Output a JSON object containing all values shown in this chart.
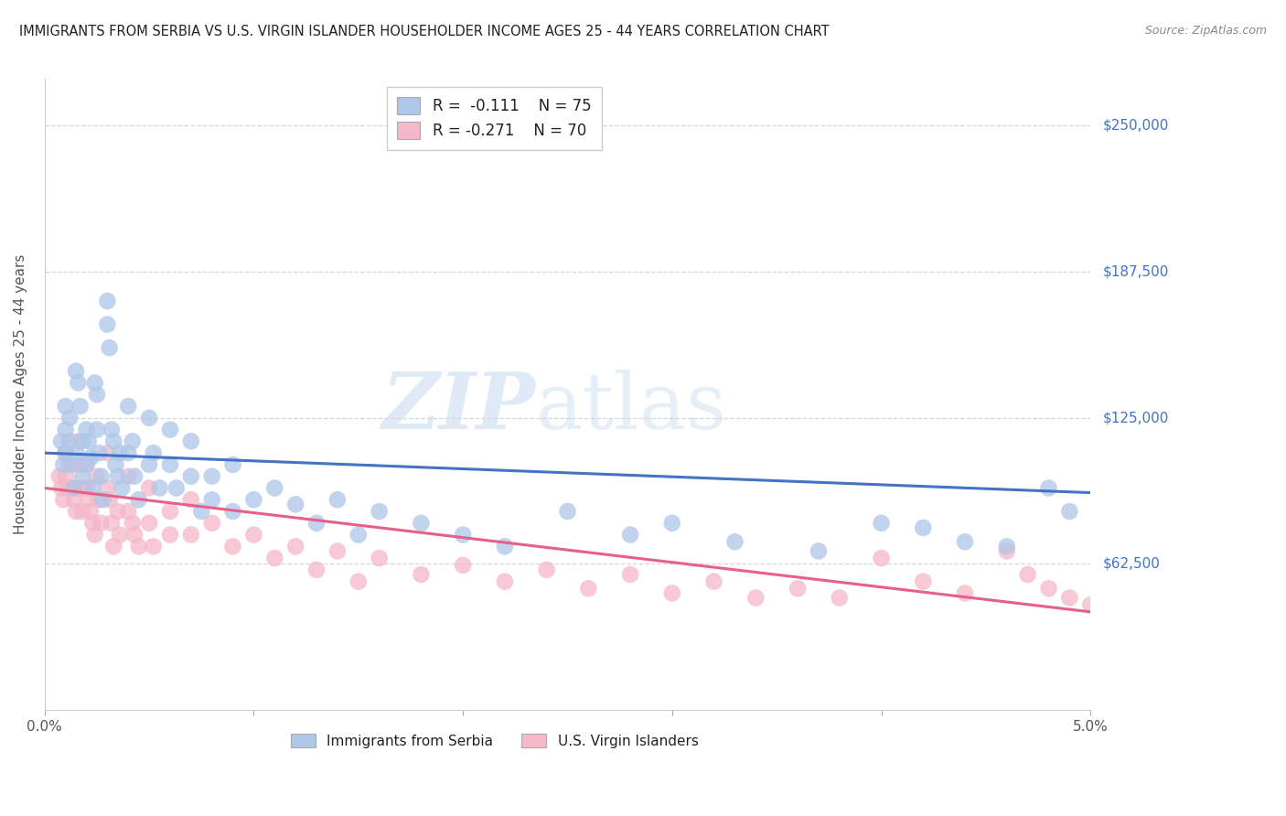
{
  "title": "IMMIGRANTS FROM SERBIA VS U.S. VIRGIN ISLANDER HOUSEHOLDER INCOME AGES 25 - 44 YEARS CORRELATION CHART",
  "source": "Source: ZipAtlas.com",
  "ylabel": "Householder Income Ages 25 - 44 years",
  "yticks": [
    62500,
    125000,
    187500,
    250000
  ],
  "ytick_labels": [
    "$62,500",
    "$125,000",
    "$187,500",
    "$250,000"
  ],
  "xmin": 0.0,
  "xmax": 0.05,
  "ymin": 0,
  "ymax": 270000,
  "serbia_color": "#aec6e8",
  "virgin_color": "#f4b8c8",
  "serbia_line_color": "#4472c4",
  "virgin_line_color": "#e8608a",
  "serbia_R": -0.111,
  "serbia_N": 75,
  "virgin_R": -0.271,
  "virgin_N": 70,
  "legend_label_1": "Immigrants from Serbia",
  "legend_label_2": "U.S. Virgin Islanders",
  "watermark_zip": "ZIP",
  "watermark_atlas": "atlas",
  "serbia_x": [
    0.0008,
    0.0009,
    0.001,
    0.001,
    0.001,
    0.0012,
    0.0012,
    0.0013,
    0.0014,
    0.0015,
    0.0015,
    0.0016,
    0.0017,
    0.0018,
    0.0018,
    0.002,
    0.002,
    0.0021,
    0.0022,
    0.0023,
    0.0024,
    0.0025,
    0.0025,
    0.0026,
    0.0027,
    0.0028,
    0.003,
    0.003,
    0.0031,
    0.0032,
    0.0033,
    0.0034,
    0.0035,
    0.0036,
    0.0037,
    0.004,
    0.004,
    0.0042,
    0.0043,
    0.0045,
    0.005,
    0.005,
    0.0052,
    0.0055,
    0.006,
    0.006,
    0.0063,
    0.007,
    0.007,
    0.0075,
    0.008,
    0.008,
    0.009,
    0.009,
    0.01,
    0.011,
    0.012,
    0.013,
    0.014,
    0.015,
    0.016,
    0.018,
    0.02,
    0.022,
    0.025,
    0.028,
    0.03,
    0.033,
    0.037,
    0.04,
    0.042,
    0.044,
    0.046,
    0.048,
    0.049
  ],
  "serbia_y": [
    115000,
    105000,
    130000,
    120000,
    110000,
    125000,
    115000,
    105000,
    95000,
    110000,
    145000,
    140000,
    130000,
    115000,
    100000,
    120000,
    105000,
    115000,
    108000,
    95000,
    140000,
    135000,
    120000,
    110000,
    100000,
    90000,
    175000,
    165000,
    155000,
    120000,
    115000,
    105000,
    100000,
    110000,
    95000,
    130000,
    110000,
    115000,
    100000,
    90000,
    125000,
    105000,
    110000,
    95000,
    120000,
    105000,
    95000,
    115000,
    100000,
    85000,
    100000,
    90000,
    105000,
    85000,
    90000,
    95000,
    88000,
    80000,
    90000,
    75000,
    85000,
    80000,
    75000,
    70000,
    85000,
    75000,
    80000,
    72000,
    68000,
    80000,
    78000,
    72000,
    70000,
    95000,
    85000
  ],
  "virgin_x": [
    0.0007,
    0.0008,
    0.0009,
    0.001,
    0.001,
    0.0011,
    0.0012,
    0.0013,
    0.0014,
    0.0015,
    0.0016,
    0.0017,
    0.0018,
    0.0018,
    0.002,
    0.002,
    0.0021,
    0.0022,
    0.0023,
    0.0024,
    0.0025,
    0.0026,
    0.0027,
    0.003,
    0.003,
    0.0031,
    0.0032,
    0.0033,
    0.0035,
    0.0036,
    0.004,
    0.004,
    0.0042,
    0.0043,
    0.0045,
    0.005,
    0.005,
    0.0052,
    0.006,
    0.006,
    0.007,
    0.007,
    0.008,
    0.009,
    0.01,
    0.011,
    0.012,
    0.013,
    0.014,
    0.015,
    0.016,
    0.018,
    0.02,
    0.022,
    0.024,
    0.026,
    0.028,
    0.03,
    0.032,
    0.034,
    0.036,
    0.038,
    0.04,
    0.042,
    0.044,
    0.046,
    0.047,
    0.048,
    0.049,
    0.05
  ],
  "virgin_y": [
    100000,
    95000,
    90000,
    110000,
    100000,
    95000,
    105000,
    95000,
    90000,
    85000,
    115000,
    105000,
    95000,
    85000,
    105000,
    95000,
    90000,
    85000,
    80000,
    75000,
    100000,
    90000,
    80000,
    110000,
    95000,
    90000,
    80000,
    70000,
    85000,
    75000,
    100000,
    85000,
    80000,
    75000,
    70000,
    95000,
    80000,
    70000,
    85000,
    75000,
    90000,
    75000,
    80000,
    70000,
    75000,
    65000,
    70000,
    60000,
    68000,
    55000,
    65000,
    58000,
    62000,
    55000,
    60000,
    52000,
    58000,
    50000,
    55000,
    48000,
    52000,
    48000,
    65000,
    55000,
    50000,
    68000,
    58000,
    52000,
    48000,
    45000
  ]
}
